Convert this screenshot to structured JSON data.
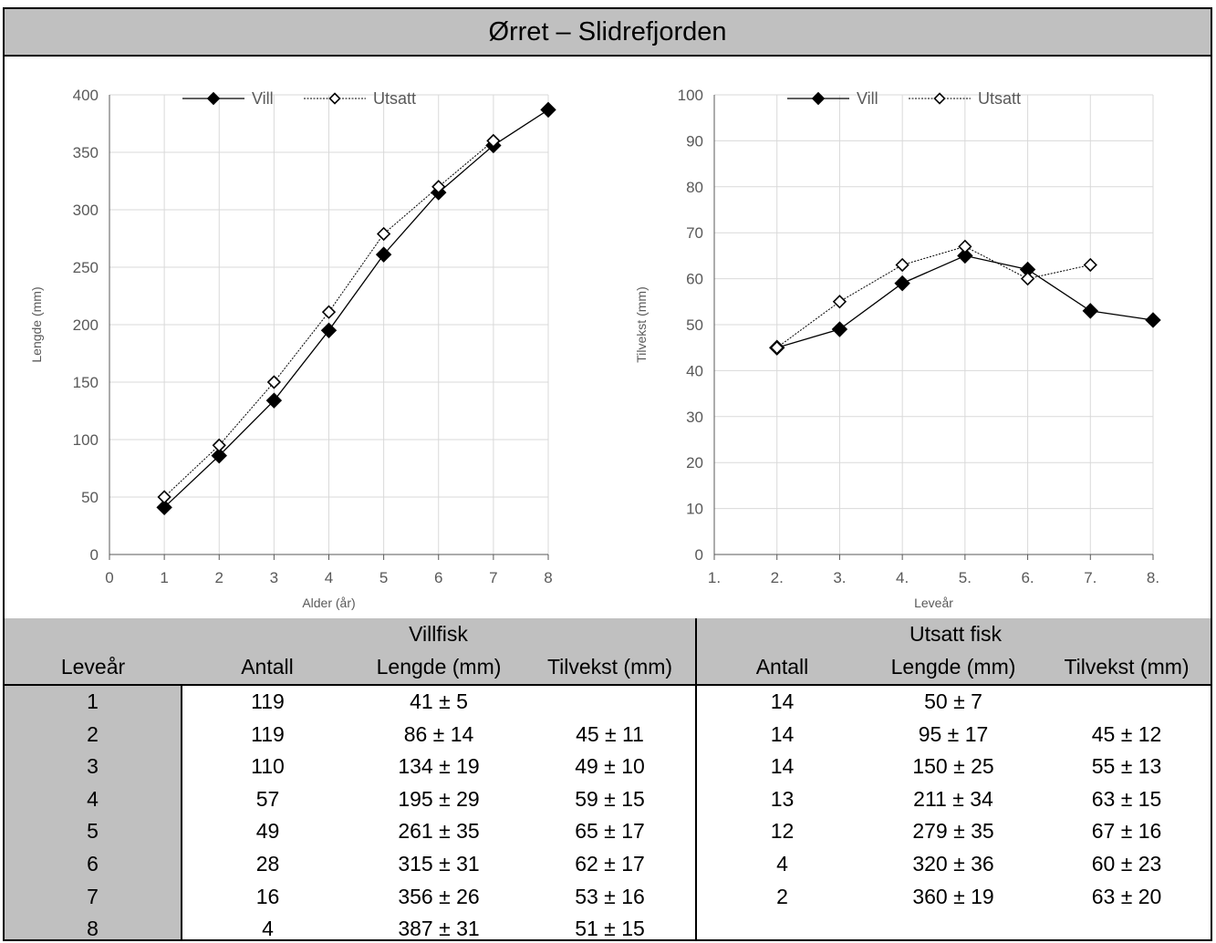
{
  "title": "Ørret – Slidrefjorden",
  "legend": {
    "wild": "Vill",
    "stocked": "Utsatt"
  },
  "chart_data": [
    {
      "type": "line",
      "xlabel": "Alder (år)",
      "ylabel": "Lengde (mm)",
      "xlim": [
        0,
        8
      ],
      "ylim": [
        0,
        400
      ],
      "x_ticks": [
        "0",
        "1",
        "2",
        "3",
        "4",
        "5",
        "6",
        "7",
        "8"
      ],
      "y_ticks": [
        "0",
        "50",
        "100",
        "150",
        "200",
        "250",
        "300",
        "350",
        "400"
      ],
      "grid": true,
      "legend_position": "top",
      "series": [
        {
          "name": "Vill",
          "marker": "filled-diamond",
          "color": "#000000",
          "x": [
            1,
            2,
            3,
            4,
            5,
            6,
            7,
            8
          ],
          "y": [
            41,
            86,
            134,
            195,
            261,
            315,
            356,
            387
          ]
        },
        {
          "name": "Utsatt",
          "marker": "open-diamond",
          "color": "#000000",
          "x": [
            1,
            2,
            3,
            4,
            5,
            6,
            7
          ],
          "y": [
            50,
            95,
            150,
            211,
            279,
            320,
            360
          ]
        }
      ]
    },
    {
      "type": "line",
      "xlabel": "Leveår",
      "ylabel": "Tilvekst (mm)",
      "categories": [
        "1.",
        "2.",
        "3.",
        "4.",
        "5.",
        "6.",
        "7.",
        "8."
      ],
      "ylim": [
        0,
        100
      ],
      "y_ticks": [
        "0",
        "10",
        "20",
        "30",
        "40",
        "50",
        "60",
        "70",
        "80",
        "90",
        "100"
      ],
      "grid": true,
      "legend_position": "top",
      "series": [
        {
          "name": "Vill",
          "marker": "filled-diamond",
          "color": "#000000",
          "values": [
            null,
            45,
            49,
            59,
            65,
            62,
            53,
            51
          ]
        },
        {
          "name": "Utsatt",
          "marker": "open-diamond",
          "color": "#000000",
          "values": [
            null,
            45,
            55,
            63,
            67,
            60,
            63,
            null
          ]
        }
      ]
    }
  ],
  "table": {
    "group_wild": "Villfisk",
    "group_stocked": "Utsatt fisk",
    "col_levear": "Leveår",
    "columns": [
      "Antall",
      "Lengde (mm)",
      "Tilvekst (mm)",
      "Antall",
      "Lengde (mm)",
      "Tilvekst (mm)"
    ],
    "rows": [
      [
        "1",
        "119",
        "41 ± 5",
        "",
        "14",
        "50 ± 7",
        ""
      ],
      [
        "2",
        "119",
        "86 ± 14",
        "45 ± 11",
        "14",
        "95 ± 17",
        "45 ± 12"
      ],
      [
        "3",
        "110",
        "134 ± 19",
        "49 ± 10",
        "14",
        "150 ± 25",
        "55 ± 13"
      ],
      [
        "4",
        "57",
        "195 ± 29",
        "59 ± 15",
        "13",
        "211 ± 34",
        "63 ± 15"
      ],
      [
        "5",
        "49",
        "261 ± 35",
        "65 ± 17",
        "12",
        "279 ± 35",
        "67 ± 16"
      ],
      [
        "6",
        "28",
        "315 ± 31",
        "62 ± 17",
        "4",
        "320 ± 36",
        "60 ± 23"
      ],
      [
        "7",
        "16",
        "356 ± 26",
        "53 ± 16",
        "2",
        "360 ± 19",
        "63 ± 20"
      ],
      [
        "8",
        "4",
        "387 ± 31",
        "51 ± 15",
        "",
        "",
        ""
      ]
    ]
  }
}
